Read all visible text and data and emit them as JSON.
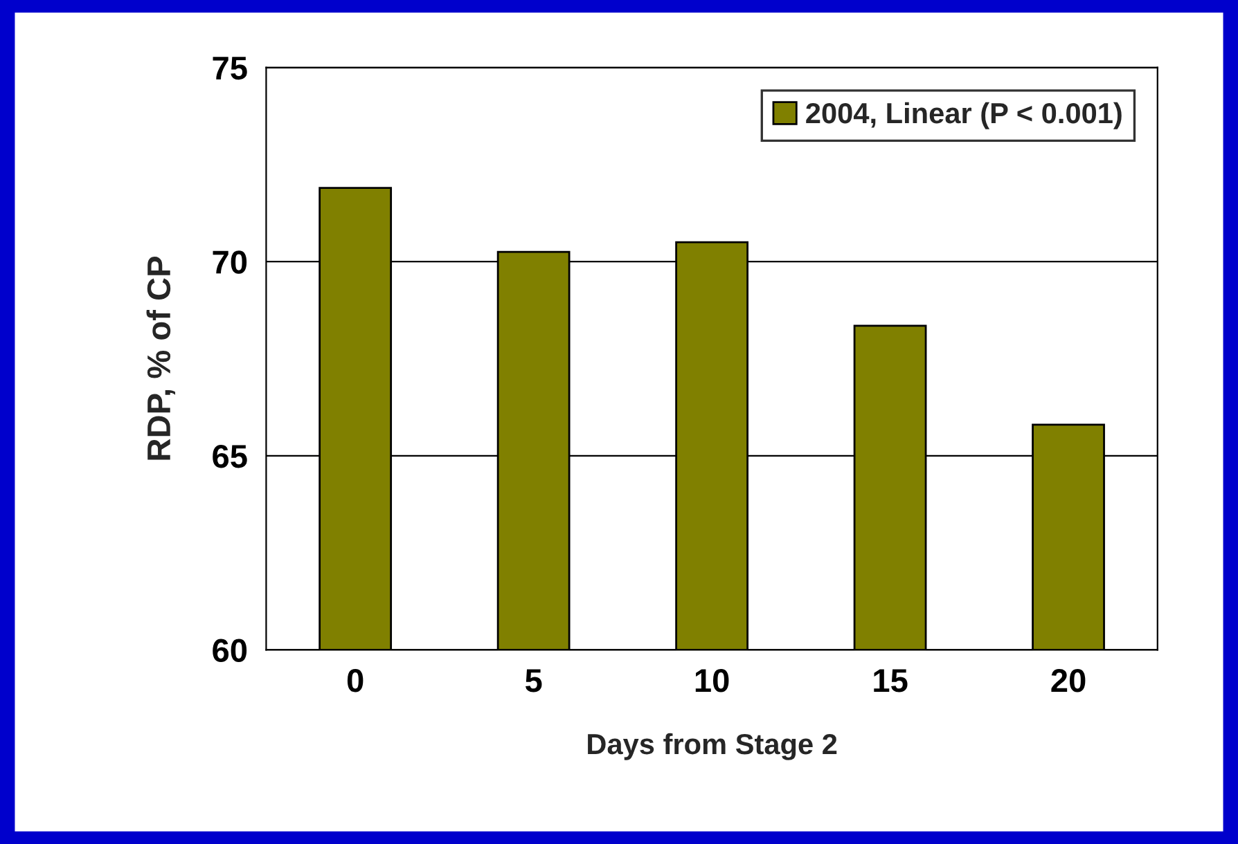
{
  "chart_data": {
    "type": "bar",
    "xlabel": "Days from Stage 2",
    "ylabel": "RDP, % of CP",
    "categories": [
      "0",
      "5",
      "10",
      "15",
      "20"
    ],
    "series": [
      {
        "name": "2004, Linear (P < 0.001)",
        "color": "#808000",
        "values": [
          71.9,
          70.25,
          70.5,
          68.35,
          65.8
        ]
      }
    ],
    "ylim": [
      60,
      75
    ],
    "yticks": [
      60,
      65,
      70,
      75
    ],
    "grid": "y",
    "legend": "top right"
  }
}
